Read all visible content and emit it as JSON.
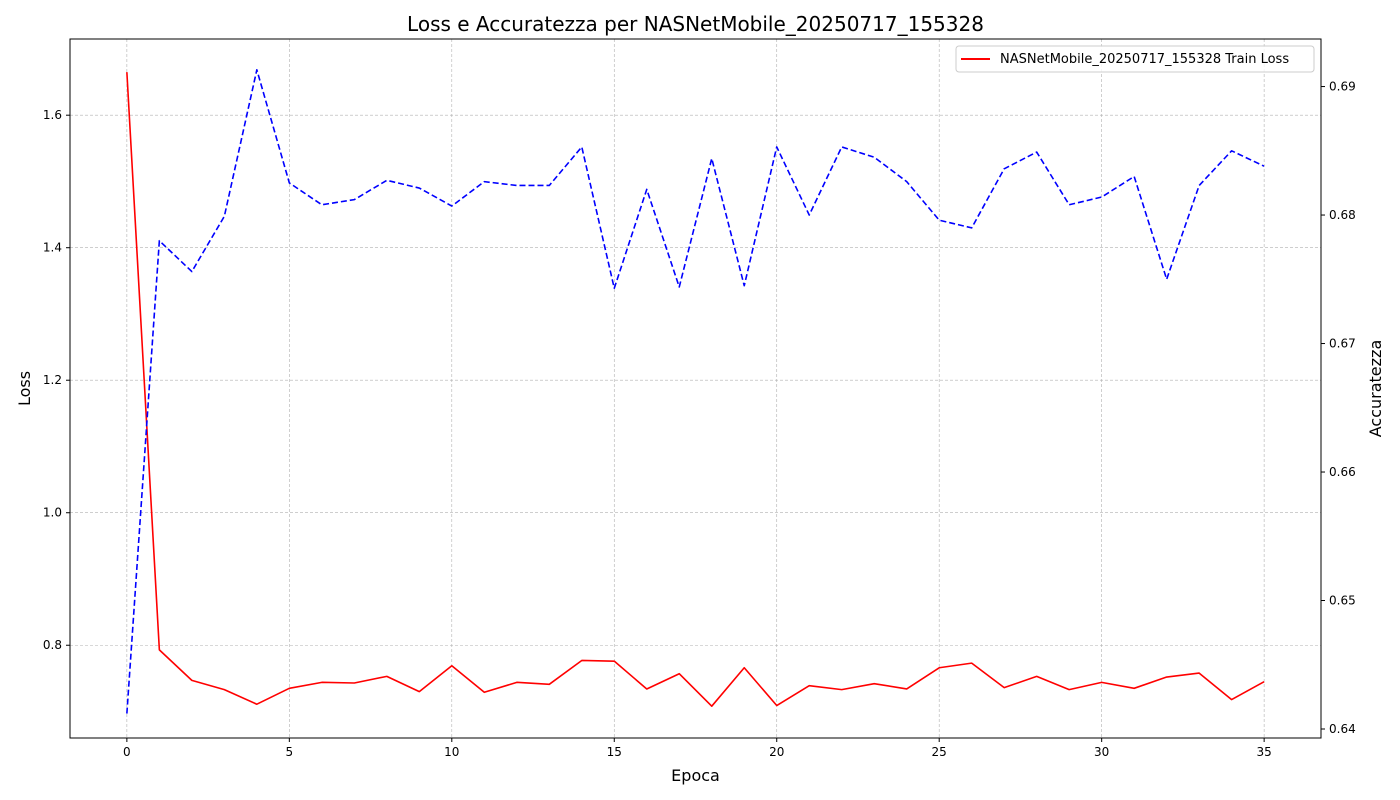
{
  "chart_data": {
    "type": "line",
    "title": "Loss e Accuratezza per NASNetMobile_20250717_155328",
    "xlabel": "Epoca",
    "ylabel_left": "Loss",
    "ylabel_right": "Accuratezza",
    "xlim": [
      -1.75,
      36.75
    ],
    "ylim_left": [
      0.66,
      1.715
    ],
    "ylim_right": [
      0.6393,
      0.6937
    ],
    "x_ticks": [
      0,
      5,
      10,
      15,
      20,
      25,
      30,
      35
    ],
    "y_ticks_left": [
      0.8,
      1.0,
      1.2,
      1.4,
      1.6
    ],
    "y_ticks_right": [
      0.64,
      0.65,
      0.66,
      0.67,
      0.68,
      0.69
    ],
    "grid": true,
    "legend_position": "top-right",
    "x": [
      0,
      1,
      2,
      3,
      4,
      5,
      6,
      7,
      8,
      9,
      10,
      11,
      12,
      13,
      14,
      15,
      16,
      17,
      18,
      19,
      20,
      21,
      22,
      23,
      24,
      25,
      26,
      27,
      28,
      29,
      30,
      31,
      32,
      33,
      34,
      35
    ],
    "series": [
      {
        "name": "NASNetMobile_20250717_155328 Train Loss",
        "axis": "left",
        "color": "#ff0000",
        "style": "solid",
        "values": [
          1.665,
          0.793,
          0.747,
          0.733,
          0.711,
          0.735,
          0.744,
          0.743,
          0.753,
          0.73,
          0.769,
          0.729,
          0.744,
          0.741,
          0.777,
          0.776,
          0.734,
          0.757,
          0.708,
          0.766,
          0.709,
          0.739,
          0.733,
          0.742,
          0.734,
          0.766,
          0.773,
          0.736,
          0.753,
          0.733,
          0.744,
          0.735,
          0.752,
          0.758,
          0.718,
          0.745
        ]
      },
      {
        "axis": "right",
        "color": "#0000ff",
        "style": "dashed",
        "values": [
          0.6412,
          0.678,
          0.6756,
          0.6799,
          0.6913,
          0.6825,
          0.6808,
          0.6812,
          0.6827,
          0.6821,
          0.6807,
          0.6826,
          0.6823,
          0.6823,
          0.6853,
          0.6743,
          0.682,
          0.6744,
          0.6844,
          0.6745,
          0.6853,
          0.68,
          0.6853,
          0.6845,
          0.6826,
          0.6796,
          0.679,
          0.6836,
          0.6849,
          0.6808,
          0.6814,
          0.683,
          0.675,
          0.6823,
          0.685,
          0.6838
        ]
      }
    ]
  }
}
